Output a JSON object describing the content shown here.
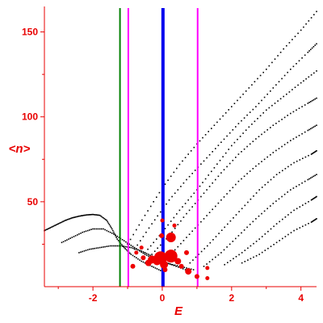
{
  "chart_data": {
    "type": "scatter",
    "xlabel": "E",
    "ylabel": "<n>",
    "xlim": [
      -3.4,
      4.45
    ],
    "ylim": [
      0,
      165
    ],
    "grid": false,
    "x_ticks": [
      -2,
      0,
      2,
      4
    ],
    "x_tick_labels": [
      "-2",
      "0",
      "2",
      "4"
    ],
    "y_ticks": [
      50,
      100,
      150
    ],
    "y_tick_labels": [
      "50",
      "100",
      "150"
    ],
    "colors": {
      "axis": "#e80000",
      "band_points": "#000000",
      "highlight_points": "#ee0000",
      "line_green": "#008000",
      "line_magenta": "#ff00ff",
      "line_blue": "#0000ee"
    },
    "vertical_lines": [
      {
        "x": -1.22,
        "color": "#008000",
        "style": "thin"
      },
      {
        "x": -0.98,
        "color": "#ff00ff",
        "style": "thin"
      },
      {
        "x": 0.02,
        "color": "#0000ee",
        "style": "thick"
      },
      {
        "x": 1.02,
        "color": "#ff00ff",
        "style": "thin"
      }
    ],
    "bands": [
      {
        "points": [
          [
            -3.4,
            33
          ],
          [
            -3.2,
            35
          ],
          [
            -3.0,
            37
          ],
          [
            -2.8,
            39
          ],
          [
            -2.6,
            40.5
          ],
          [
            -2.4,
            41.5
          ],
          [
            -2.2,
            42.2
          ],
          [
            -2.0,
            42.5
          ],
          [
            -1.8,
            42
          ],
          [
            -1.6,
            39
          ],
          [
            -1.45,
            34
          ],
          [
            -1.3,
            28
          ],
          [
            -1.1,
            23
          ],
          [
            -0.9,
            19
          ],
          [
            -0.6,
            15
          ],
          [
            -0.3,
            12
          ],
          [
            0.0,
            9
          ]
        ]
      },
      {
        "points": [
          [
            -2.9,
            26
          ],
          [
            -2.6,
            29
          ],
          [
            -2.3,
            32
          ],
          [
            -2.0,
            34
          ],
          [
            -1.7,
            34
          ],
          [
            -1.4,
            31
          ],
          [
            -1.1,
            27
          ],
          [
            -0.8,
            23
          ],
          [
            -0.5,
            19
          ],
          [
            -0.2,
            16
          ],
          [
            0.1,
            14
          ],
          [
            0.5,
            12
          ],
          [
            0.9,
            10
          ]
        ]
      },
      {
        "points": [
          [
            -2.4,
            20
          ],
          [
            -2.1,
            22
          ],
          [
            -1.8,
            23
          ],
          [
            -1.5,
            24
          ],
          [
            -1.2,
            24
          ],
          [
            -0.9,
            23
          ],
          [
            -0.6,
            21
          ],
          [
            -0.3,
            18
          ],
          [
            0.0,
            15
          ],
          [
            0.4,
            12
          ],
          [
            0.8,
            9
          ]
        ]
      },
      {
        "points": [
          [
            -1.0,
            25
          ],
          [
            -0.5,
            42
          ],
          [
            0.0,
            58
          ],
          [
            0.5,
            72
          ],
          [
            1.0,
            84
          ],
          [
            1.5,
            95
          ],
          [
            2.0,
            106
          ],
          [
            2.5,
            117
          ],
          [
            3.0,
            128
          ],
          [
            3.5,
            140
          ],
          [
            4.0,
            151
          ],
          [
            4.45,
            162
          ]
        ]
      },
      {
        "points": [
          [
            -0.8,
            22
          ],
          [
            -0.3,
            37
          ],
          [
            0.2,
            51
          ],
          [
            0.7,
            63
          ],
          [
            1.2,
            74
          ],
          [
            1.7,
            85
          ],
          [
            2.2,
            96
          ],
          [
            2.7,
            106
          ],
          [
            3.2,
            117
          ],
          [
            3.7,
            128
          ],
          [
            4.2,
            138
          ],
          [
            4.45,
            143
          ]
        ]
      },
      {
        "points": [
          [
            -0.5,
            20
          ],
          [
            0.0,
            32
          ],
          [
            0.5,
            45
          ],
          [
            1.0,
            57
          ],
          [
            1.5,
            70
          ],
          [
            2.0,
            83
          ],
          [
            2.5,
            94
          ],
          [
            3.0,
            104
          ],
          [
            3.5,
            112
          ],
          [
            4.0,
            120
          ],
          [
            4.45,
            127
          ]
        ]
      },
      {
        "points": [
          [
            -0.3,
            19
          ],
          [
            0.2,
            30
          ],
          [
            0.7,
            43
          ],
          [
            1.2,
            55
          ],
          [
            1.7,
            67
          ],
          [
            2.2,
            78
          ],
          [
            2.7,
            87
          ],
          [
            3.2,
            95
          ],
          [
            3.7,
            102
          ],
          [
            4.2,
            108
          ],
          [
            4.45,
            111
          ]
        ]
      },
      {
        "points": [
          [
            0.2,
            18
          ],
          [
            0.7,
            29
          ],
          [
            1.2,
            40
          ],
          [
            1.7,
            51
          ],
          [
            2.2,
            62
          ],
          [
            2.7,
            71
          ],
          [
            3.2,
            79
          ],
          [
            3.7,
            86
          ],
          [
            4.2,
            92
          ],
          [
            4.45,
            95
          ]
        ]
      },
      {
        "points": [
          [
            0.8,
            14
          ],
          [
            1.3,
            24
          ],
          [
            1.8,
            35
          ],
          [
            2.3,
            46
          ],
          [
            2.8,
            57
          ],
          [
            3.3,
            66
          ],
          [
            3.8,
            73
          ],
          [
            4.3,
            78
          ],
          [
            4.45,
            80
          ]
        ]
      },
      {
        "points": [
          [
            1.2,
            12
          ],
          [
            1.7,
            20
          ],
          [
            2.2,
            30
          ],
          [
            2.7,
            40
          ],
          [
            3.2,
            49
          ],
          [
            3.7,
            57
          ],
          [
            4.2,
            63
          ],
          [
            4.45,
            66
          ]
        ]
      },
      {
        "points": [
          [
            1.8,
            13
          ],
          [
            2.3,
            20
          ],
          [
            2.8,
            28
          ],
          [
            3.3,
            37
          ],
          [
            3.8,
            45
          ],
          [
            4.3,
            51
          ],
          [
            4.45,
            53
          ]
        ]
      },
      {
        "points": [
          [
            2.3,
            14
          ],
          [
            2.8,
            19
          ],
          [
            3.3,
            26
          ],
          [
            3.8,
            33
          ],
          [
            4.3,
            38
          ],
          [
            4.45,
            40
          ]
        ]
      }
    ],
    "highlight_points": [
      {
        "x": -0.75,
        "y": 20,
        "size": 2.5
      },
      {
        "x": -0.55,
        "y": 17,
        "size": 3
      },
      {
        "x": -0.4,
        "y": 14,
        "size": 4
      },
      {
        "x": -0.3,
        "y": 16,
        "size": 5
      },
      {
        "x": -0.15,
        "y": 15,
        "size": 5
      },
      {
        "x": -0.05,
        "y": 17,
        "size": 8
      },
      {
        "x": -0.02,
        "y": 30,
        "size": 3
      },
      {
        "x": 0.05,
        "y": 13,
        "size": 5
      },
      {
        "x": 0.08,
        "y": 10,
        "size": 3
      },
      {
        "x": 0.25,
        "y": 29,
        "size": 6
      },
      {
        "x": 0.25,
        "y": 18,
        "size": 8
      },
      {
        "x": 0.45,
        "y": 15,
        "size": 4
      },
      {
        "x": 0.55,
        "y": 12,
        "size": 3
      },
      {
        "x": 0.75,
        "y": 9,
        "size": 4
      },
      {
        "x": 0.7,
        "y": 20,
        "size": 3
      },
      {
        "x": -0.6,
        "y": 23,
        "size": 2.5
      },
      {
        "x": -0.85,
        "y": 12,
        "size": 3
      },
      {
        "x": 1.0,
        "y": 6,
        "size": 3
      },
      {
        "x": 1.3,
        "y": 5,
        "size": 2.5
      },
      {
        "x": 0.0,
        "y": 39,
        "size": 2.5
      },
      {
        "x": 0.35,
        "y": 36,
        "size": 2.5
      },
      {
        "x": 1.3,
        "y": 11,
        "size": 2.5
      }
    ]
  }
}
